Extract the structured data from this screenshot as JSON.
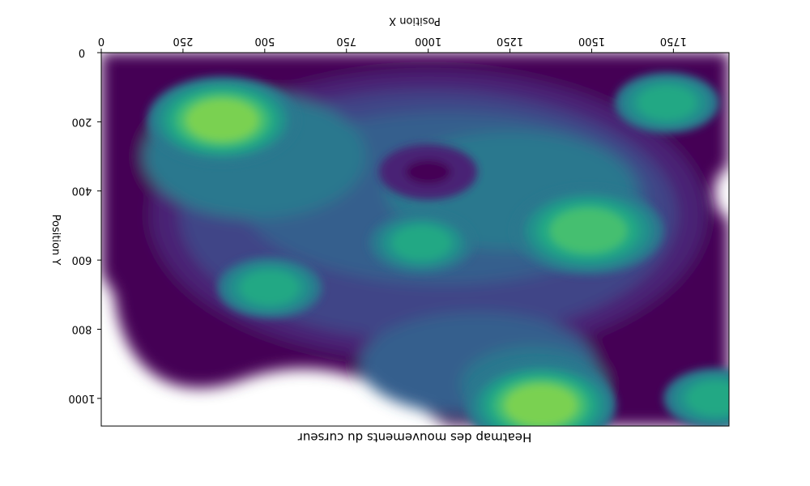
{
  "chart_data": {
    "type": "heatmap",
    "title": "Heatmap des mouvements du curseur",
    "xlabel": "Position X",
    "ylabel": "Position Y",
    "xlim": [
      0,
      1920
    ],
    "ylim": [
      0,
      1080
    ],
    "x_ticks": [
      "0",
      "250",
      "500",
      "750",
      "1000",
      "1250",
      "1500",
      "1750"
    ],
    "y_ticks": [
      "0",
      "200",
      "400",
      "600",
      "800",
      "1000"
    ],
    "colormap": "viridis",
    "colors": [
      "#440154",
      "#482475",
      "#414487",
      "#355f8d",
      "#2a788e",
      "#21918c",
      "#22a884",
      "#44bf70",
      "#7ad151"
    ],
    "layout": "mirrored (image horizontally flipped)",
    "hotspots": [
      {
        "x": 370,
        "y": 195,
        "intensity": 1.0,
        "label": "high"
      },
      {
        "x": 1345,
        "y": 1020,
        "intensity": 1.0,
        "label": "high"
      },
      {
        "x": 1490,
        "y": 515,
        "intensity": 0.92,
        "label": "high"
      },
      {
        "x": 980,
        "y": 550,
        "intensity": 0.75,
        "label": "medium"
      },
      {
        "x": 1880,
        "y": 1000,
        "intensity": 0.72,
        "label": "medium"
      },
      {
        "x": 515,
        "y": 680,
        "intensity": 0.72,
        "label": "medium"
      },
      {
        "x": 1730,
        "y": 145,
        "intensity": 0.7,
        "label": "medium"
      },
      {
        "x": 1000,
        "y": 345,
        "intensity": 0.05,
        "label": "low"
      }
    ]
  }
}
